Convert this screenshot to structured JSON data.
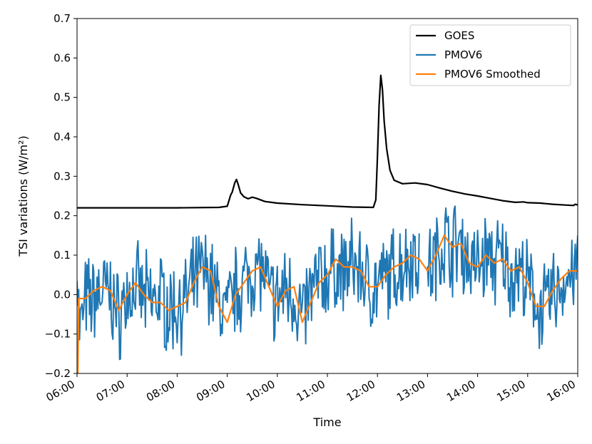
{
  "chart_data": {
    "type": "line",
    "title": "",
    "xlabel": "Time",
    "ylabel": "TSI variations (W/m²)",
    "xlim": [
      "06:00",
      "16:00"
    ],
    "ylim": [
      -0.2,
      0.7
    ],
    "x_ticks": [
      "06:00",
      "07:00",
      "08:00",
      "09:00",
      "10:00",
      "11:00",
      "12:00",
      "13:00",
      "14:00",
      "15:00",
      "16:00"
    ],
    "y_ticks": [
      "−0.2",
      "−0.1",
      "0.0",
      "0.1",
      "0.2",
      "0.3",
      "0.4",
      "0.5",
      "0.6",
      "0.7"
    ],
    "grid": false,
    "legend_position": "top-right",
    "series": [
      {
        "name": "GOES",
        "color": "#000000",
        "points": [
          [
            "06:00",
            0.22
          ],
          [
            "07:00",
            0.22
          ],
          [
            "08:00",
            0.22
          ],
          [
            "08:50",
            0.221
          ],
          [
            "09:00",
            0.224
          ],
          [
            "09:04",
            0.252
          ],
          [
            "09:06",
            0.26
          ],
          [
            "09:09",
            0.283
          ],
          [
            "09:11",
            0.292
          ],
          [
            "09:13",
            0.28
          ],
          [
            "09:16",
            0.258
          ],
          [
            "09:20",
            0.248
          ],
          [
            "09:25",
            0.243
          ],
          [
            "09:30",
            0.247
          ],
          [
            "09:35",
            0.244
          ],
          [
            "09:45",
            0.236
          ],
          [
            "10:00",
            0.232
          ],
          [
            "10:30",
            0.228
          ],
          [
            "11:00",
            0.225
          ],
          [
            "11:30",
            0.222
          ],
          [
            "11:55",
            0.221
          ],
          [
            "11:58",
            0.24
          ],
          [
            "12:00",
            0.35
          ],
          [
            "12:02",
            0.48
          ],
          [
            "12:04",
            0.556
          ],
          [
            "12:06",
            0.52
          ],
          [
            "12:08",
            0.44
          ],
          [
            "12:11",
            0.37
          ],
          [
            "12:15",
            0.315
          ],
          [
            "12:20",
            0.29
          ],
          [
            "12:30",
            0.281
          ],
          [
            "12:45",
            0.283
          ],
          [
            "13:00",
            0.279
          ],
          [
            "13:15",
            0.27
          ],
          [
            "13:30",
            0.262
          ],
          [
            "13:45",
            0.255
          ],
          [
            "14:00",
            0.25
          ],
          [
            "14:15",
            0.244
          ],
          [
            "14:30",
            0.238
          ],
          [
            "14:45",
            0.234
          ],
          [
            "14:55",
            0.235
          ],
          [
            "15:00",
            0.233
          ],
          [
            "15:15",
            0.232
          ],
          [
            "15:30",
            0.229
          ],
          [
            "15:45",
            0.227
          ],
          [
            "15:55",
            0.226
          ],
          [
            "15:57",
            0.229
          ],
          [
            "16:00",
            0.227
          ]
        ]
      },
      {
        "name": "PMOV6",
        "color": "#1f77b4",
        "noisy": true,
        "gap": [
          "12:50",
          "13:00"
        ],
        "points": [
          [
            "06:00",
            0.1
          ],
          [
            "06:03",
            -0.1
          ],
          [
            "06:10",
            -0.02
          ],
          [
            "06:20",
            -0.01
          ],
          [
            "06:30",
            0.01
          ],
          [
            "06:40",
            0.0
          ],
          [
            "06:50",
            -0.06
          ],
          [
            "07:00",
            0.0
          ],
          [
            "07:10",
            0.02
          ],
          [
            "07:20",
            -0.01
          ],
          [
            "07:30",
            -0.02
          ],
          [
            "07:40",
            0.0
          ],
          [
            "07:50",
            -0.04
          ],
          [
            "08:00",
            -0.03
          ],
          [
            "08:10",
            -0.02
          ],
          [
            "08:20",
            0.03
          ],
          [
            "08:30",
            0.06
          ],
          [
            "08:40",
            0.04
          ],
          [
            "08:50",
            -0.02
          ],
          [
            "09:00",
            -0.05
          ],
          [
            "09:10",
            0.01
          ],
          [
            "09:20",
            0.03
          ],
          [
            "09:30",
            0.06
          ],
          [
            "09:40",
            0.07
          ],
          [
            "09:50",
            0.0
          ],
          [
            "10:00",
            -0.02
          ],
          [
            "10:10",
            0.02
          ],
          [
            "10:20",
            0.0
          ],
          [
            "10:30",
            -0.06
          ],
          [
            "10:40",
            0.0
          ],
          [
            "10:50",
            0.04
          ],
          [
            "11:00",
            0.05
          ],
          [
            "11:10",
            0.07
          ],
          [
            "11:20",
            0.05
          ],
          [
            "11:30",
            0.08
          ],
          [
            "11:40",
            0.06
          ],
          [
            "11:50",
            0.02
          ],
          [
            "12:00",
            0.02
          ],
          [
            "12:10",
            0.04
          ],
          [
            "12:20",
            0.06
          ],
          [
            "12:30",
            0.08
          ],
          [
            "12:40",
            0.1
          ],
          [
            "12:50",
            0.09
          ],
          [
            "13:00",
            0.06
          ],
          [
            "13:10",
            0.09
          ],
          [
            "13:20",
            0.14
          ],
          [
            "13:30",
            0.12
          ],
          [
            "13:40",
            0.13
          ],
          [
            "13:50",
            0.08
          ],
          [
            "14:00",
            0.07
          ],
          [
            "14:10",
            0.1
          ],
          [
            "14:20",
            0.08
          ],
          [
            "14:30",
            0.09
          ],
          [
            "14:40",
            0.05
          ],
          [
            "14:50",
            0.06
          ],
          [
            "15:00",
            0.02
          ],
          [
            "15:10",
            -0.02
          ],
          [
            "15:20",
            -0.04
          ],
          [
            "15:30",
            0.0
          ],
          [
            "15:40",
            0.02
          ],
          [
            "15:50",
            0.05
          ],
          [
            "16:00",
            0.06
          ]
        ]
      },
      {
        "name": "PMOV6 Smoothed",
        "color": "#ff7f0e",
        "gap": [
          "12:50",
          "13:00"
        ],
        "points": [
          [
            "06:00",
            -0.2
          ],
          [
            "06:01",
            -0.2
          ],
          [
            "06:02",
            -0.01
          ],
          [
            "06:10",
            -0.01
          ],
          [
            "06:20",
            0.01
          ],
          [
            "06:30",
            0.02
          ],
          [
            "06:40",
            0.01
          ],
          [
            "06:50",
            -0.04
          ],
          [
            "07:00",
            0.0
          ],
          [
            "07:10",
            0.03
          ],
          [
            "07:20",
            0.0
          ],
          [
            "07:30",
            -0.02
          ],
          [
            "07:40",
            -0.02
          ],
          [
            "07:50",
            -0.04
          ],
          [
            "08:00",
            -0.03
          ],
          [
            "08:10",
            -0.02
          ],
          [
            "08:20",
            0.03
          ],
          [
            "08:30",
            0.07
          ],
          [
            "08:40",
            0.06
          ],
          [
            "08:50",
            -0.03
          ],
          [
            "09:00",
            -0.07
          ],
          [
            "09:10",
            0.0
          ],
          [
            "09:20",
            0.03
          ],
          [
            "09:30",
            0.06
          ],
          [
            "09:40",
            0.07
          ],
          [
            "09:50",
            0.02
          ],
          [
            "10:00",
            -0.03
          ],
          [
            "10:10",
            0.01
          ],
          [
            "10:20",
            0.02
          ],
          [
            "10:30",
            -0.07
          ],
          [
            "10:40",
            -0.02
          ],
          [
            "10:50",
            0.03
          ],
          [
            "11:00",
            0.05
          ],
          [
            "11:10",
            0.09
          ],
          [
            "11:20",
            0.07
          ],
          [
            "11:30",
            0.07
          ],
          [
            "11:40",
            0.06
          ],
          [
            "11:50",
            0.02
          ],
          [
            "12:00",
            0.02
          ],
          [
            "12:10",
            0.05
          ],
          [
            "12:20",
            0.07
          ],
          [
            "12:30",
            0.08
          ],
          [
            "12:40",
            0.1
          ],
          [
            "12:50",
            0.09
          ],
          [
            "13:00",
            0.06
          ],
          [
            "13:10",
            0.1
          ],
          [
            "13:20",
            0.15
          ],
          [
            "13:30",
            0.12
          ],
          [
            "13:40",
            0.13
          ],
          [
            "13:50",
            0.08
          ],
          [
            "14:00",
            0.07
          ],
          [
            "14:10",
            0.1
          ],
          [
            "14:20",
            0.08
          ],
          [
            "14:30",
            0.09
          ],
          [
            "14:40",
            0.06
          ],
          [
            "14:50",
            0.07
          ],
          [
            "15:00",
            0.03
          ],
          [
            "15:10",
            -0.03
          ],
          [
            "15:20",
            -0.03
          ],
          [
            "15:30",
            0.01
          ],
          [
            "15:40",
            0.04
          ],
          [
            "15:50",
            0.06
          ],
          [
            "16:00",
            0.06
          ]
        ]
      }
    ]
  }
}
